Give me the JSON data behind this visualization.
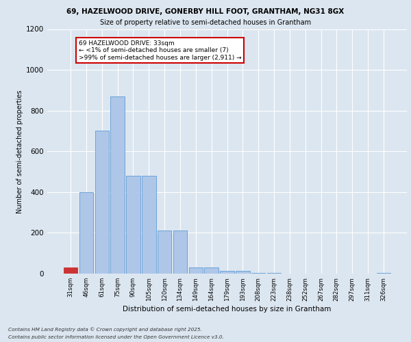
{
  "title_line1": "69, HAZELWOOD DRIVE, GONERBY HILL FOOT, GRANTHAM, NG31 8GX",
  "title_line2": "Size of property relative to semi-detached houses in Grantham",
  "xlabel": "Distribution of semi-detached houses by size in Grantham",
  "ylabel": "Number of semi-detached properties",
  "categories": [
    "31sqm",
    "46sqm",
    "61sqm",
    "75sqm",
    "90sqm",
    "105sqm",
    "120sqm",
    "134sqm",
    "149sqm",
    "164sqm",
    "179sqm",
    "193sqm",
    "208sqm",
    "223sqm",
    "238sqm",
    "252sqm",
    "267sqm",
    "282sqm",
    "297sqm",
    "311sqm",
    "326sqm"
  ],
  "values": [
    30,
    400,
    700,
    870,
    480,
    480,
    210,
    210,
    30,
    30,
    15,
    15,
    5,
    5,
    0,
    0,
    0,
    0,
    0,
    0,
    5
  ],
  "bar_color": "#aec6e8",
  "bar_edge_color": "#5b9bd5",
  "highlight_bar_index": 0,
  "highlight_color": "#cc3333",
  "background_color": "#dce6f0",
  "plot_background": "#dce6f0",
  "grid_color": "#ffffff",
  "annotation_text": "69 HAZELWOOD DRIVE: 33sqm\n← <1% of semi-detached houses are smaller (7)\n>99% of semi-detached houses are larger (2,911) →",
  "annotation_box_facecolor": "#ffffff",
  "annotation_box_edge": "#cc0000",
  "footer_line1": "Contains HM Land Registry data © Crown copyright and database right 2025.",
  "footer_line2": "Contains public sector information licensed under the Open Government Licence v3.0.",
  "ylim": [
    0,
    1200
  ],
  "yticks": [
    0,
    200,
    400,
    600,
    800,
    1000,
    1200
  ]
}
